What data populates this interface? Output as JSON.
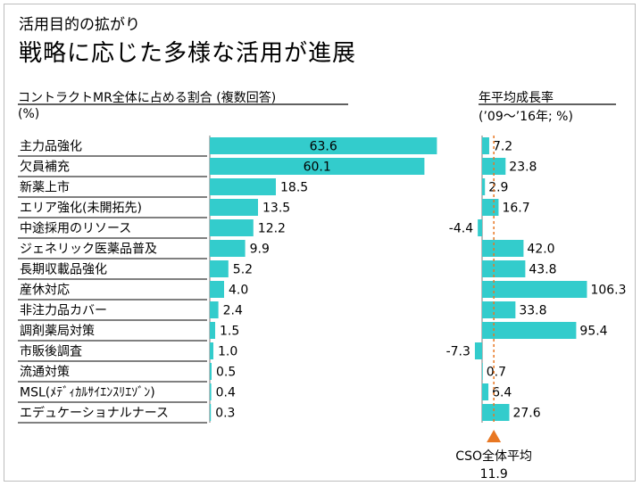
{
  "slide": {
    "subtitle": "活用目的の拡がり",
    "title": "戦略に応じた多様な活用が進展"
  },
  "colors": {
    "bar": "#33cccc",
    "marker": "#e87722",
    "row_line": "#000000",
    "axis": "#7a7a7a"
  },
  "chart_data": [
    {
      "type": "bar",
      "orientation": "horizontal",
      "title": "コントラクトMR全体に占める割合 (複数回答)",
      "unit_label": "(%)",
      "categories": [
        "主力品強化",
        "欠員補充",
        "新薬上市",
        "エリア強化(未開拓先)",
        "中途採用のリソース",
        "ジェネリック医薬品普及",
        "長期収載品強化",
        "産休対応",
        "非注力品カバー",
        "調剤薬局対策",
        "市販後調査",
        "流通対策",
        "MSL(ﾒﾃﾞｨｶﾙｻｲｴﾝｽﾘｴｿﾞﾝ)",
        "エデュケーショナルナース"
      ],
      "values": [
        63.6,
        60.1,
        18.5,
        13.5,
        12.2,
        9.9,
        5.2,
        4.0,
        2.4,
        1.5,
        1.0,
        0.5,
        0.4,
        0.3
      ],
      "value_labels": [
        "63.6",
        "60.1",
        "18.5",
        "13.5",
        "12.2",
        "9.9",
        "5.2",
        "4.0",
        "2.4",
        "1.5",
        "1.0",
        "0.5",
        "0.4",
        "0.3"
      ]
    },
    {
      "type": "bar",
      "orientation": "horizontal",
      "title": "年平均成長率",
      "unit_label": "(’09～’16年; %)",
      "categories": [
        "主力品強化",
        "欠員補充",
        "新薬上市",
        "エリア強化(未開拓先)",
        "中途採用のリソース",
        "ジェネリック医薬品普及",
        "長期収載品強化",
        "産休対応",
        "非注力品カバー",
        "調剤薬局対策",
        "市販後調査",
        "流通対策",
        "MSL(ﾒﾃﾞｨｶﾙｻｲｴﾝｽﾘｴｿﾞﾝ)",
        "エデュケーショナルナース"
      ],
      "values": [
        7.2,
        23.8,
        2.9,
        16.7,
        -4.4,
        42.0,
        43.8,
        106.3,
        33.8,
        95.4,
        -7.3,
        0.7,
        6.4,
        27.6
      ],
      "value_labels": [
        "7.2",
        "23.8",
        "2.9",
        "16.7",
        "-4.4",
        "42.0",
        "43.8",
        "106.3",
        "33.8",
        "95.4",
        "-7.3",
        "0.7",
        "6.4",
        "27.6"
      ],
      "reference_line": {
        "label": "CSO全体平均",
        "value": 11.9,
        "value_label": "11.9"
      }
    }
  ]
}
